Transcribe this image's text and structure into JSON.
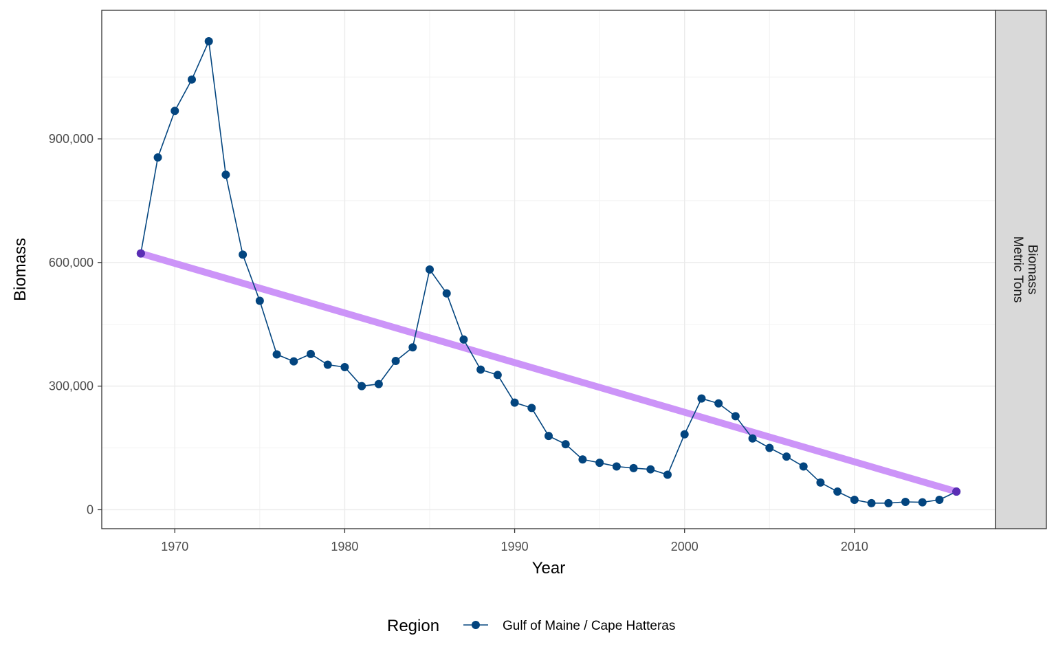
{
  "chart_data": {
    "type": "line",
    "xlabel": "Year",
    "ylabel": "Biomass",
    "xlim": [
      1965.7,
      2018.3
    ],
    "ylim": [
      -46000,
      1212000
    ],
    "x_ticks": [
      1970,
      1980,
      1990,
      2000,
      2010
    ],
    "y_ticks": [
      0,
      300000,
      600000,
      900000
    ],
    "y_tick_labels": [
      "0",
      "300,000",
      "600,000",
      "900,000"
    ],
    "grid": true,
    "facet_strip": [
      "Biomass",
      "Metric Tons"
    ],
    "legend": {
      "title": "Region",
      "position": "bottom",
      "entries": [
        "Gulf of Maine / Cape Hatteras"
      ]
    },
    "series": [
      {
        "name": "Gulf of Maine / Cape Hatteras",
        "color": "#03457F",
        "x": [
          1968,
          1969,
          1970,
          1971,
          1972,
          1973,
          1974,
          1975,
          1976,
          1977,
          1978,
          1979,
          1980,
          1981,
          1982,
          1983,
          1984,
          1985,
          1986,
          1987,
          1988,
          1989,
          1990,
          1991,
          1992,
          1993,
          1994,
          1995,
          1996,
          1997,
          1998,
          1999,
          2000,
          2001,
          2002,
          2003,
          2004,
          2005,
          2006,
          2007,
          2008,
          2009,
          2010,
          2011,
          2012,
          2013,
          2014,
          2015,
          2016
        ],
        "y": [
          622000,
          855000,
          968000,
          1044000,
          1137000,
          813000,
          619000,
          507000,
          377000,
          360000,
          378000,
          352000,
          346000,
          300000,
          305000,
          361000,
          394000,
          583000,
          525000,
          413000,
          340000,
          327000,
          260000,
          247000,
          179000,
          159000,
          122000,
          114000,
          105000,
          101000,
          98000,
          85000,
          183000,
          270000,
          258000,
          227000,
          173000,
          150000,
          129000,
          105000,
          66000,
          44000,
          24000,
          16000,
          16000,
          19000,
          18000,
          24000,
          44000
        ]
      }
    ],
    "trend": {
      "color": "#CC94F8",
      "x": [
        1968,
        2016
      ],
      "y": [
        622000,
        44000
      ]
    }
  }
}
